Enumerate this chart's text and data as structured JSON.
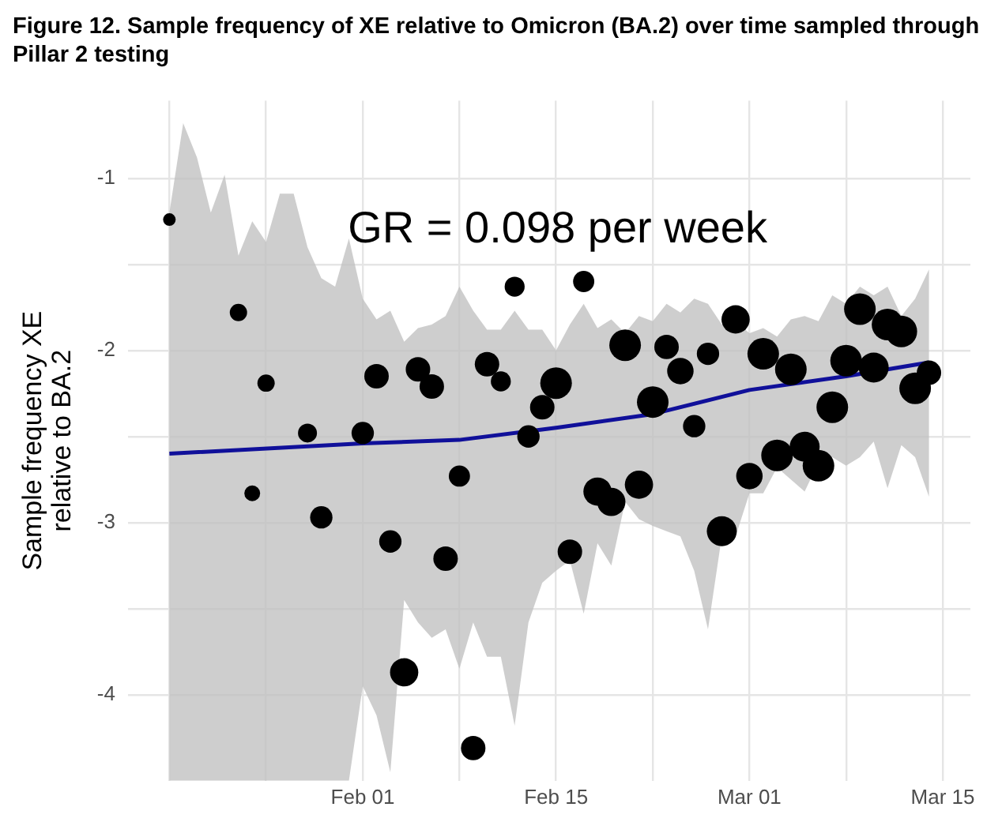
{
  "chart_data": {
    "type": "bubble",
    "title": "Figure 12. Sample frequency of XE relative to Omicron (BA.2) over time sampled through Pillar 2 testing",
    "ylabel": "Sample frequency XE\nrelative to BA.2",
    "annotations": [
      "GR = 0.098 per week"
    ],
    "xlim": [
      "--01-15",
      "--03-17"
    ],
    "xticks": [
      {
        "value": "--01-18",
        "label": null
      },
      {
        "value": "--01-25",
        "label": null
      },
      {
        "value": "--02-01",
        "label": "Feb 01"
      },
      {
        "value": "--02-08",
        "label": null
      },
      {
        "value": "--02-15",
        "label": "Feb 15"
      },
      {
        "value": "--02-22",
        "label": null
      },
      {
        "value": "--03-01",
        "label": "Mar 01"
      },
      {
        "value": "--03-08",
        "label": null
      },
      {
        "value": "--03-15",
        "label": "Mar 15"
      }
    ],
    "ylim": [
      -4.5,
      -0.55
    ],
    "yticks": [
      -4,
      {
        "value": -3.5,
        "label": null
      },
      -3,
      {
        "value": -2.5,
        "label": null
      },
      -2,
      {
        "value": -1.5,
        "label": null
      },
      -1
    ],
    "grid": true,
    "series": [
      {
        "type": "line",
        "color": "#10109a",
        "x": [
          "--01-18",
          "--01-19",
          "--01-20",
          "--01-21",
          "--01-22",
          "--01-23",
          "--01-24",
          "--01-25",
          "--01-26",
          "--01-27",
          "--01-28",
          "--01-29",
          "--01-30",
          "--01-31",
          "--02-01",
          "--02-02",
          "--02-03",
          "--02-04",
          "--02-05",
          "--02-06",
          "--02-07",
          "--02-08",
          "--02-09",
          "--02-10",
          "--02-11",
          "--02-12",
          "--02-13",
          "--02-14",
          "--02-15",
          "--02-16",
          "--02-17",
          "--02-18",
          "--02-19",
          "--02-20",
          "--02-21",
          "--02-22",
          "--02-23",
          "--02-24",
          "--02-25",
          "--02-26",
          "--02-27",
          "--02-28",
          "--03-01",
          "--03-02",
          "--03-03",
          "--03-04",
          "--03-05",
          "--03-06",
          "--03-07",
          "--03-08",
          "--03-09",
          "--03-10",
          "--03-11",
          "--03-12",
          "--03-13",
          "--03-14"
        ],
        "values": [
          -2.6,
          null,
          null,
          null,
          null,
          null,
          null,
          null,
          null,
          null,
          null,
          null,
          null,
          null,
          -2.54,
          null,
          null,
          null,
          null,
          null,
          null,
          -2.52,
          null,
          null,
          null,
          null,
          null,
          null,
          -2.45,
          null,
          null,
          null,
          null,
          null,
          null,
          -2.37,
          null,
          null,
          null,
          null,
          null,
          null,
          -2.23,
          null,
          null,
          null,
          null,
          null,
          null,
          -2.15,
          null,
          null,
          null,
          null,
          null,
          -2.07
        ],
        "upper": [
          -1.2,
          -0.68,
          -0.88,
          -1.2,
          -0.98,
          -1.45,
          -1.25,
          -1.37,
          -1.09,
          -1.09,
          -1.4,
          -1.58,
          -1.63,
          -1.35,
          -1.7,
          -1.82,
          -1.77,
          -1.95,
          -1.87,
          -1.85,
          -1.8,
          -1.63,
          -1.77,
          -1.88,
          -1.88,
          -1.77,
          -1.88,
          -1.88,
          -2.0,
          -1.85,
          -1.73,
          -1.87,
          -1.82,
          -1.9,
          -1.8,
          -1.83,
          -1.73,
          -1.78,
          -1.7,
          -1.73,
          -1.85,
          -1.83,
          -1.9,
          -1.87,
          -1.92,
          -1.82,
          -1.8,
          -1.83,
          -1.68,
          -1.73,
          -1.63,
          -1.68,
          -1.63,
          -1.8,
          -1.7,
          -1.53
        ],
        "lower": [
          -4.5,
          -4.5,
          -4.5,
          -4.5,
          -4.5,
          -4.5,
          -4.5,
          -4.5,
          -4.5,
          -4.5,
          -4.5,
          -4.5,
          -4.5,
          -4.5,
          -3.95,
          -4.12,
          -4.45,
          -3.45,
          -3.58,
          -3.67,
          -3.62,
          -3.85,
          -3.58,
          -3.78,
          -3.78,
          -4.18,
          -3.58,
          -3.35,
          -3.28,
          -3.22,
          -3.53,
          -3.12,
          -3.25,
          -2.88,
          -2.98,
          -3.02,
          -3.05,
          -3.08,
          -3.28,
          -3.62,
          -3.08,
          -3.08,
          -2.83,
          -2.83,
          -2.68,
          -2.75,
          -2.82,
          -2.65,
          -2.62,
          -2.67,
          -2.62,
          -2.53,
          -2.8,
          -2.55,
          -2.62,
          -2.85
        ]
      },
      {
        "color": "#000000",
        "x": [
          "--01-18",
          "--01-19",
          "--01-20",
          "--01-21",
          "--01-22",
          "--01-23",
          "--01-24",
          "--01-25",
          "--01-26",
          "--01-27",
          "--01-28",
          "--01-29",
          "--01-30",
          "--01-31",
          "--02-01",
          "--02-02",
          "--02-03",
          "--02-04",
          "--02-05",
          "--02-06",
          "--02-07",
          "--02-08",
          "--02-09",
          "--02-10",
          "--02-11",
          "--02-12",
          "--02-13",
          "--02-14",
          "--02-15",
          "--02-16",
          "--02-17",
          "--02-18",
          "--02-19",
          "--02-20",
          "--02-21",
          "--02-22",
          "--02-23",
          "--02-24",
          "--02-25",
          "--02-26",
          "--02-27",
          "--02-28",
          "--03-01",
          "--03-02",
          "--03-03",
          "--03-04",
          "--03-05",
          "--03-06",
          "--03-07",
          "--03-08",
          "--03-09",
          "--03-10",
          "--03-11",
          "--03-12",
          "--03-13",
          "--03-14"
        ],
        "values": [
          -1.24,
          null,
          null,
          null,
          null,
          -1.78,
          -2.83,
          -2.19,
          null,
          null,
          -2.48,
          -2.97,
          null,
          null,
          -2.48,
          -2.15,
          -3.11,
          -3.87,
          -2.11,
          -2.21,
          -3.21,
          -2.73,
          -4.31,
          -2.08,
          -2.18,
          -1.63,
          -2.5,
          -2.33,
          -2.19,
          -3.17,
          -1.6,
          -2.82,
          -2.88,
          -1.97,
          -2.78,
          -2.3,
          -1.98,
          -2.12,
          -2.44,
          -2.02,
          -3.05,
          -1.82,
          -2.73,
          -2.02,
          -2.61,
          -2.11,
          -2.56,
          -2.67,
          -2.33,
          -2.06,
          -1.76,
          -2.1,
          -1.85,
          -1.89,
          -2.22,
          -2.13
        ],
        "sizes": [
          0.16,
          null,
          null,
          null,
          null,
          0.3,
          0.25,
          0.3,
          null,
          null,
          0.36,
          0.5,
          null,
          null,
          0.5,
          0.6,
          0.5,
          0.8,
          0.6,
          0.6,
          0.6,
          0.45,
          0.6,
          0.6,
          0.4,
          0.4,
          0.5,
          0.6,
          1,
          0.6,
          0.45,
          0.8,
          0.8,
          1,
          0.8,
          1,
          0.6,
          0.7,
          0.5,
          0.5,
          0.9,
          0.8,
          0.7,
          1,
          1,
          1,
          0.9,
          1,
          1,
          1,
          1,
          0.9,
          1,
          1,
          1,
          0.6
        ]
      }
    ]
  }
}
